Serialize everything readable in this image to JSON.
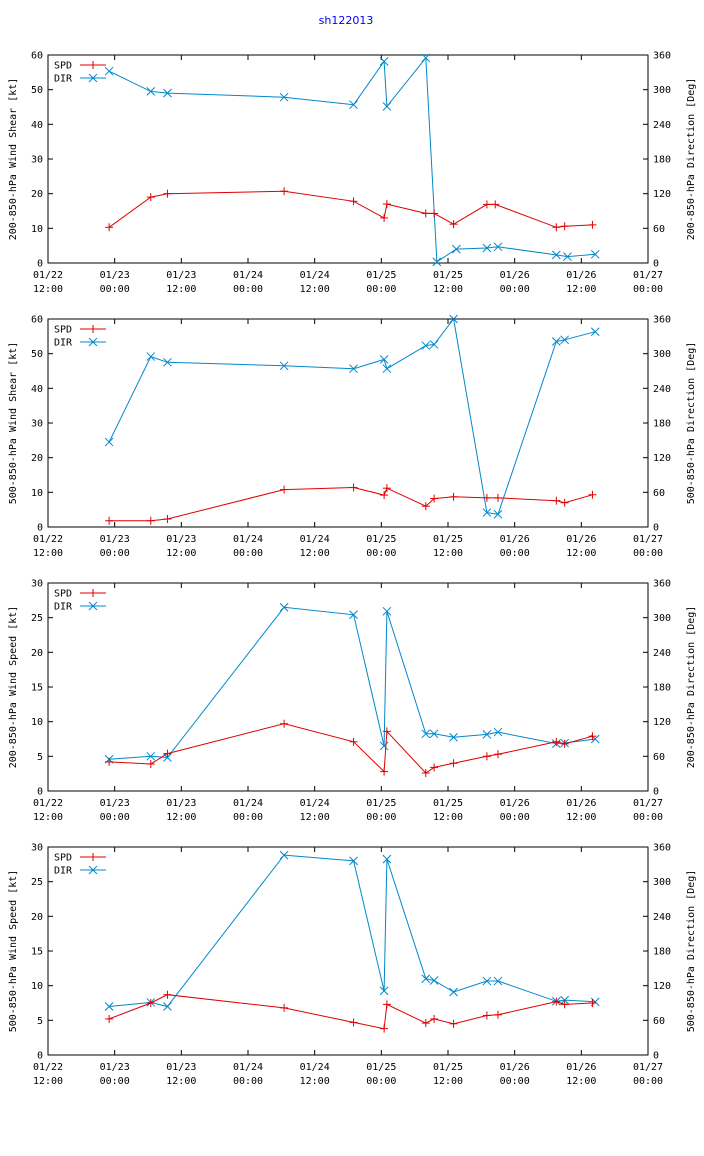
{
  "page_title": "sh122013",
  "colors": {
    "title": "#0000ff",
    "spd": "#e00000",
    "dir": "#0088cc",
    "axis": "#000000"
  },
  "x_axis": {
    "range_hours": [
      0,
      108
    ],
    "ticks": [
      {
        "hour": 0,
        "line1": "01/22",
        "line2": "12:00"
      },
      {
        "hour": 12,
        "line1": "01/23",
        "line2": "00:00"
      },
      {
        "hour": 24,
        "line1": "01/23",
        "line2": "12:00"
      },
      {
        "hour": 36,
        "line1": "01/24",
        "line2": "00:00"
      },
      {
        "hour": 48,
        "line1": "01/24",
        "line2": "12:00"
      },
      {
        "hour": 60,
        "line1": "01/25",
        "line2": "00:00"
      },
      {
        "hour": 72,
        "line1": "01/25",
        "line2": "12:00"
      },
      {
        "hour": 84,
        "line1": "01/26",
        "line2": "00:00"
      },
      {
        "hour": 96,
        "line1": "01/26",
        "line2": "12:00"
      },
      {
        "hour": 108,
        "line1": "01/27",
        "line2": "00:00"
      }
    ]
  },
  "chart_data": [
    {
      "type": "line",
      "ylabel": "200-850-hPa Wind Shear [kt]",
      "y2label": "200-850-hPa Direction [Deg]",
      "ylim": [
        0,
        60
      ],
      "yticks": [
        0,
        10,
        20,
        30,
        40,
        50,
        60
      ],
      "y2lim": [
        0,
        360
      ],
      "y2ticks": [
        0,
        60,
        120,
        180,
        240,
        300,
        360
      ],
      "legend": [
        "SPD",
        "DIR"
      ],
      "spd": [
        [
          11,
          10.3
        ],
        [
          18.5,
          19
        ],
        [
          21.5,
          20
        ],
        [
          42.5,
          20.7
        ],
        [
          55,
          17.8
        ],
        [
          60.5,
          13
        ],
        [
          61,
          17
        ],
        [
          68,
          14.3
        ],
        [
          69.5,
          14.3
        ],
        [
          73,
          11.2
        ],
        [
          79,
          16.9
        ],
        [
          80.5,
          16.9
        ],
        [
          91.5,
          10.3
        ],
        [
          93,
          10.6
        ],
        [
          98,
          11
        ]
      ],
      "dir": [
        [
          11,
          332
        ],
        [
          18.5,
          297
        ],
        [
          21.5,
          294
        ],
        [
          42.5,
          287
        ],
        [
          55,
          274
        ],
        [
          60.5,
          349
        ],
        [
          61,
          271
        ],
        [
          68,
          355
        ],
        [
          70,
          2
        ],
        [
          73.5,
          24
        ],
        [
          79,
          26
        ],
        [
          81,
          28
        ],
        [
          91.5,
          14
        ],
        [
          93.5,
          11
        ],
        [
          98.5,
          15
        ]
      ]
    },
    {
      "type": "line",
      "ylabel": "500-850-hPa Wind Shear [kt]",
      "y2label": "500-850-hPa Direction [Deg]",
      "ylim": [
        0,
        60
      ],
      "yticks": [
        0,
        10,
        20,
        30,
        40,
        50,
        60
      ],
      "y2lim": [
        0,
        360
      ],
      "y2ticks": [
        0,
        60,
        120,
        180,
        240,
        300,
        360
      ],
      "legend": [
        "SPD",
        "DIR"
      ],
      "spd": [
        [
          11,
          1.8
        ],
        [
          18.5,
          1.8
        ],
        [
          21.5,
          2.3
        ],
        [
          42.5,
          10.8
        ],
        [
          55,
          11.4
        ],
        [
          60.5,
          9.2
        ],
        [
          61,
          11.2
        ],
        [
          68,
          6
        ],
        [
          69.5,
          8.2
        ],
        [
          73,
          8.7
        ],
        [
          79,
          8.4
        ],
        [
          81,
          8.4
        ],
        [
          91.5,
          7.6
        ],
        [
          93,
          7
        ],
        [
          98,
          9.3
        ]
      ],
      "dir": [
        [
          11,
          147
        ],
        [
          18.5,
          295
        ],
        [
          21.5,
          285
        ],
        [
          42.5,
          279
        ],
        [
          55,
          274
        ],
        [
          60.5,
          290
        ],
        [
          61,
          274
        ],
        [
          68,
          314
        ],
        [
          69.5,
          316
        ],
        [
          73,
          360
        ],
        [
          79,
          25
        ],
        [
          81,
          22
        ],
        [
          91.5,
          321
        ],
        [
          93,
          324
        ],
        [
          98.5,
          338
        ]
      ]
    },
    {
      "type": "line",
      "ylabel": "200-850-hPa Wind Speed [kt]",
      "y2label": "200-850-hPa Direction [Deg]",
      "ylim": [
        0,
        30
      ],
      "yticks": [
        0,
        5,
        10,
        15,
        20,
        25,
        30
      ],
      "y2lim": [
        0,
        360
      ],
      "y2ticks": [
        0,
        60,
        120,
        180,
        240,
        300,
        360
      ],
      "legend": [
        "SPD",
        "DIR"
      ],
      "spd": [
        [
          11,
          4.2
        ],
        [
          18.5,
          3.9
        ],
        [
          21.5,
          5.4
        ],
        [
          42.5,
          9.7
        ],
        [
          55,
          7.1
        ],
        [
          60.5,
          2.8
        ],
        [
          61,
          8.6
        ],
        [
          68,
          2.6
        ],
        [
          69.5,
          3.4
        ],
        [
          73,
          4
        ],
        [
          79,
          5
        ],
        [
          81,
          5.3
        ],
        [
          91.5,
          7.1
        ],
        [
          93,
          6.8
        ],
        [
          98,
          7.9
        ]
      ],
      "dir": [
        [
          11,
          55
        ],
        [
          18.5,
          60
        ],
        [
          21.5,
          58
        ],
        [
          42.5,
          318
        ],
        [
          55,
          305
        ],
        [
          60.5,
          78
        ],
        [
          61,
          311
        ],
        [
          68,
          99
        ],
        [
          69.5,
          99
        ],
        [
          73,
          93
        ],
        [
          79,
          98
        ],
        [
          81,
          102
        ],
        [
          91.5,
          82
        ],
        [
          93,
          83
        ],
        [
          98.5,
          90
        ]
      ]
    },
    {
      "type": "line",
      "ylabel": "500-850-hPa Wind Speed [kt]",
      "y2label": "500-850-hPa Direction [Deg]",
      "ylim": [
        0,
        30
      ],
      "yticks": [
        0,
        5,
        10,
        15,
        20,
        25,
        30
      ],
      "y2lim": [
        0,
        360
      ],
      "y2ticks": [
        0,
        60,
        120,
        180,
        240,
        300,
        360
      ],
      "legend": [
        "SPD",
        "DIR"
      ],
      "spd": [
        [
          11,
          5.2
        ],
        [
          18.5,
          7.5
        ],
        [
          21.5,
          8.7
        ],
        [
          42.5,
          6.8
        ],
        [
          55,
          4.7
        ],
        [
          60.5,
          3.8
        ],
        [
          61,
          7.3
        ],
        [
          68,
          4.6
        ],
        [
          69.5,
          5.2
        ],
        [
          73,
          4.5
        ],
        [
          79,
          5.7
        ],
        [
          81,
          5.8
        ],
        [
          91.5,
          7.7
        ],
        [
          93,
          7.3
        ],
        [
          98,
          7.5
        ]
      ],
      "dir": [
        [
          11,
          84
        ],
        [
          18.5,
          91
        ],
        [
          21.5,
          84
        ],
        [
          42.5,
          346
        ],
        [
          55,
          336
        ],
        [
          60.5,
          111
        ],
        [
          61,
          339
        ],
        [
          68,
          132
        ],
        [
          69.5,
          129
        ],
        [
          73,
          109
        ],
        [
          79,
          128
        ],
        [
          81,
          128
        ],
        [
          91.5,
          93
        ],
        [
          93,
          95
        ],
        [
          98.5,
          92
        ]
      ]
    }
  ]
}
